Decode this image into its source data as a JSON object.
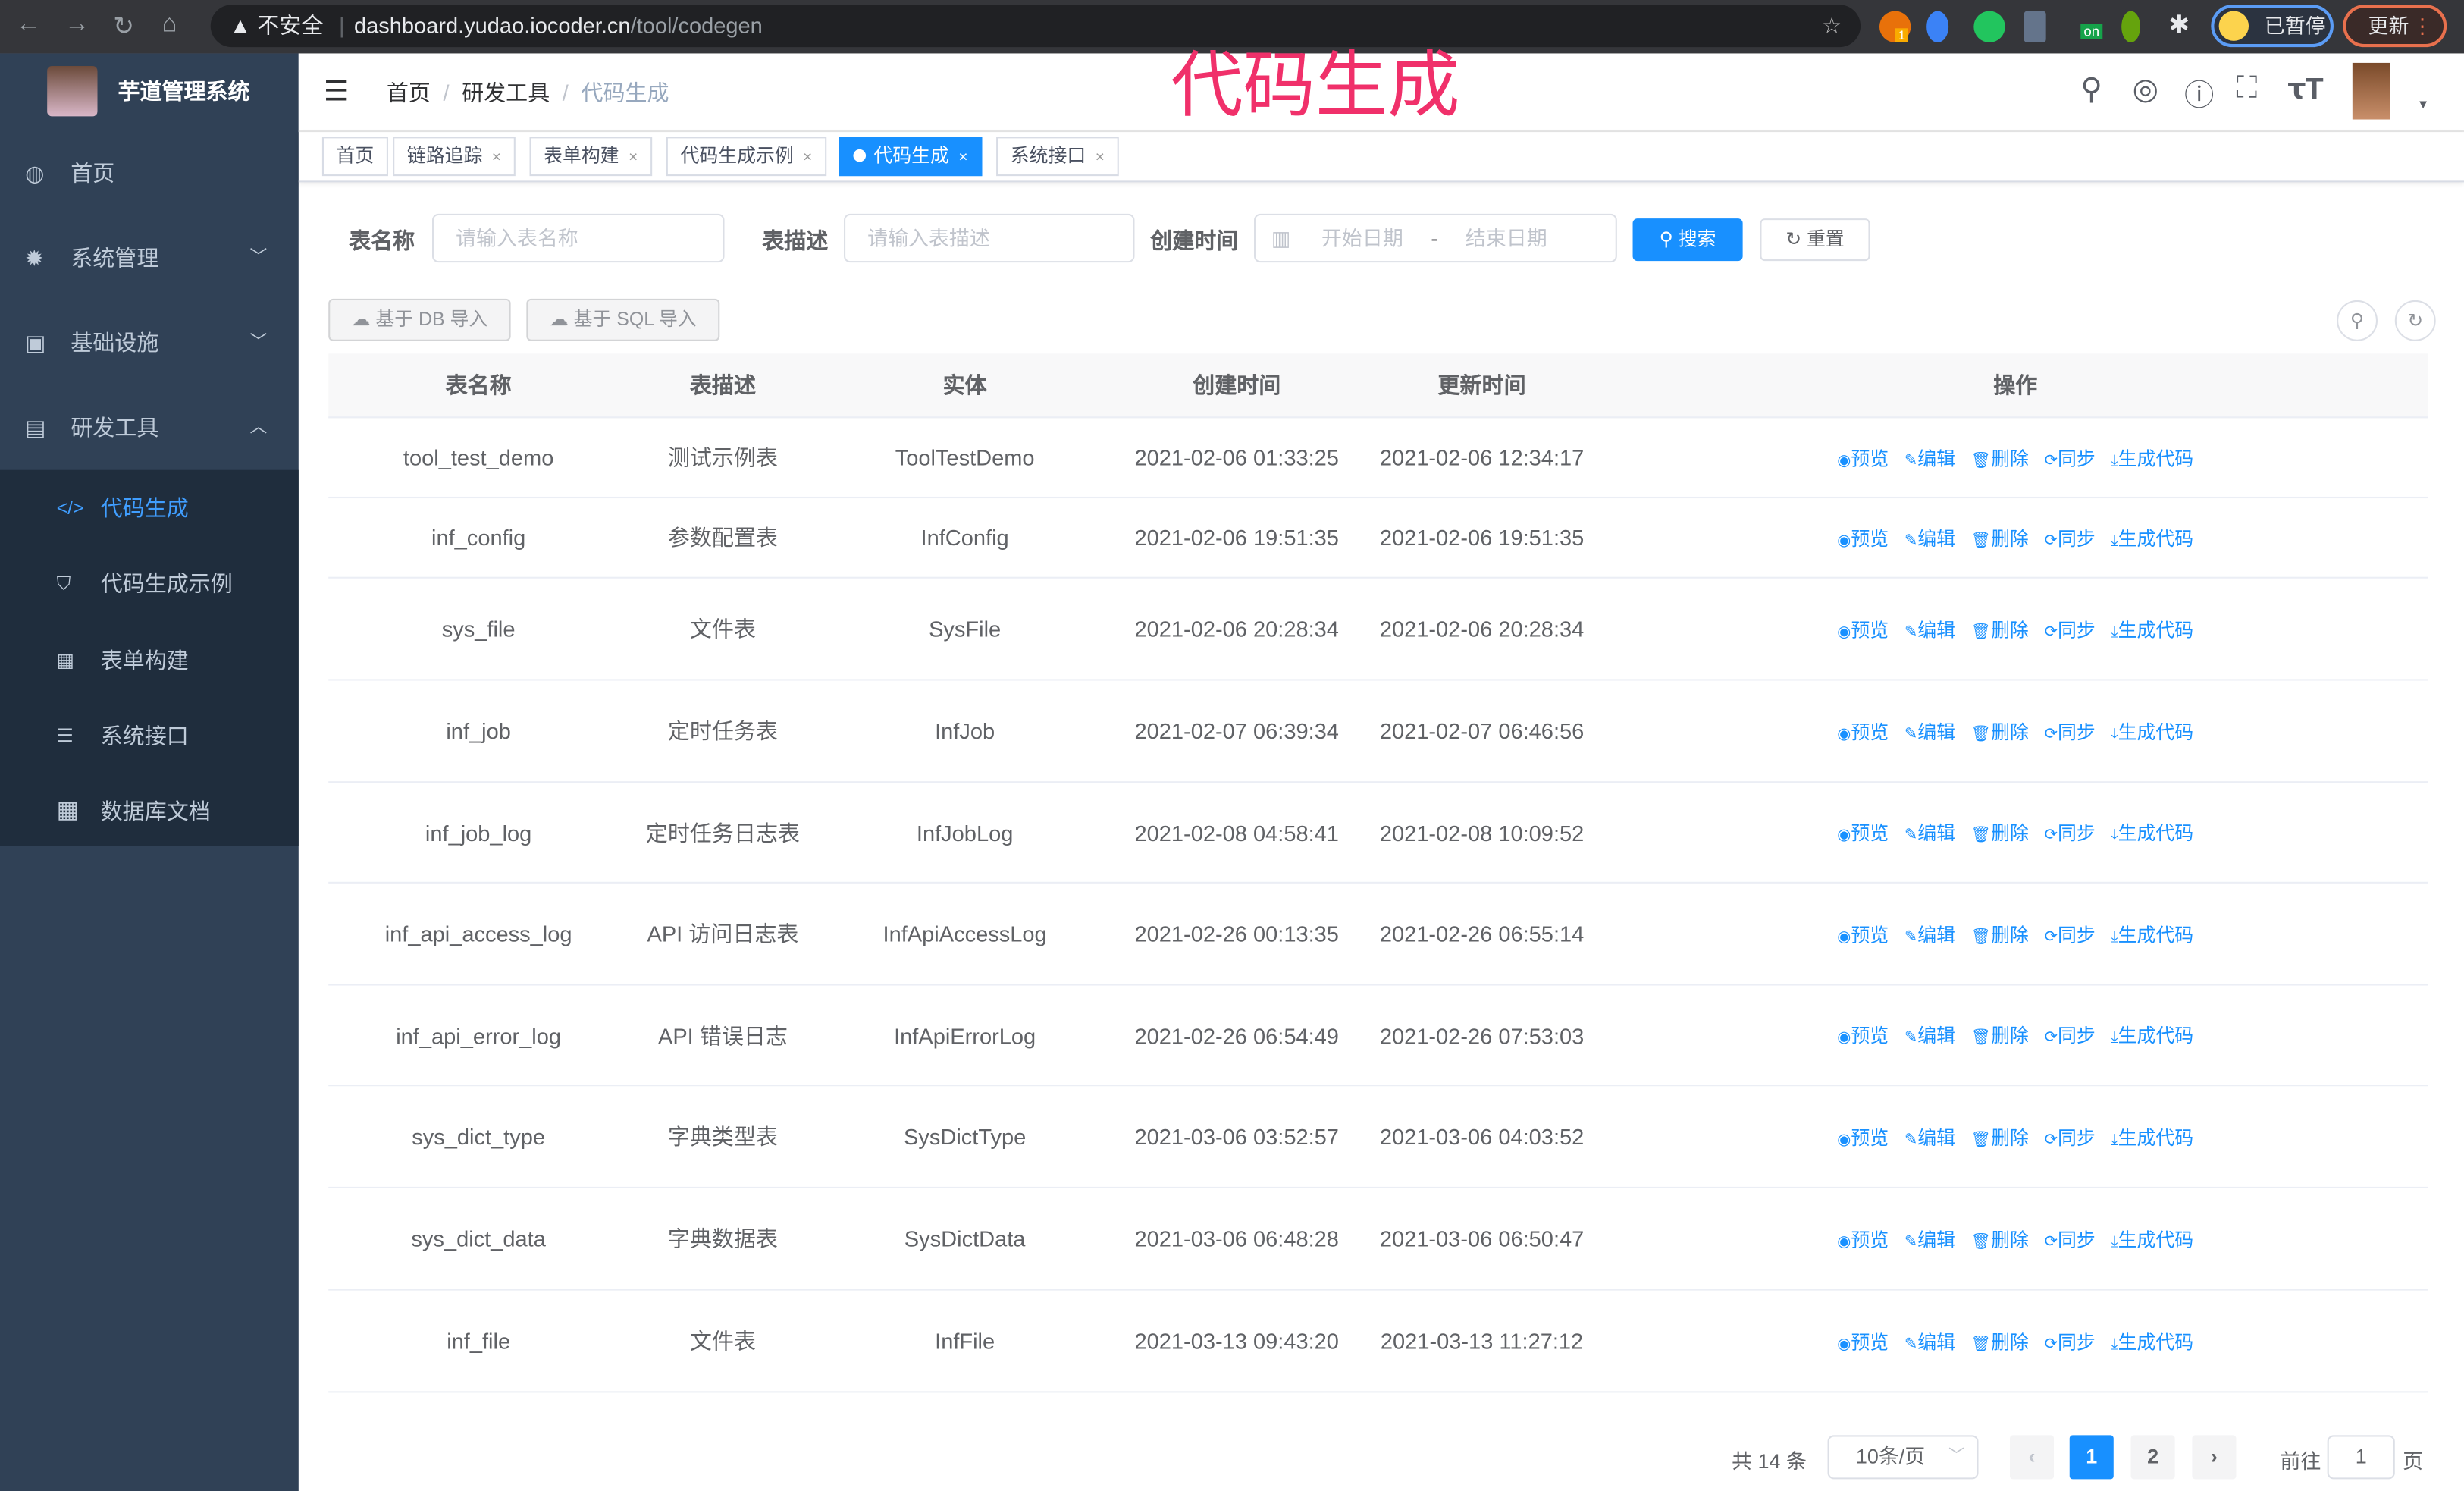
{
  "browser": {
    "security": "不安全",
    "url_host": "dashboard.yudao.iocoder.cn",
    "url_path": "/tool/codegen",
    "paused_label": "已暂停",
    "update_label": "更新",
    "ext_badge": "1",
    "ext_on": "on"
  },
  "sidebar": {
    "brand": "芋道管理系统",
    "items": [
      {
        "label": "首页",
        "icon": "dashboard-icon"
      },
      {
        "label": "系统管理",
        "icon": "gear-icon",
        "chevron": "down"
      },
      {
        "label": "基础设施",
        "icon": "monitor-icon",
        "chevron": "down"
      },
      {
        "label": "研发工具",
        "icon": "toolbox-icon",
        "chevron": "up"
      }
    ],
    "subitems": [
      {
        "label": "代码生成",
        "icon": "code-icon",
        "active": true
      },
      {
        "label": "代码生成示例",
        "icon": "shield-icon"
      },
      {
        "label": "表单构建",
        "icon": "form-icon"
      },
      {
        "label": "系统接口",
        "icon": "sliders-icon"
      },
      {
        "label": "数据库文档",
        "icon": "table-icon"
      }
    ]
  },
  "header": {
    "breadcrumb": [
      "首页",
      "研发工具",
      "代码生成"
    ],
    "watermark": "代码生成"
  },
  "tags": [
    {
      "label": "首页"
    },
    {
      "label": "链路追踪"
    },
    {
      "label": "表单构建"
    },
    {
      "label": "代码生成示例"
    },
    {
      "label": "代码生成",
      "active": true
    },
    {
      "label": "系统接口"
    }
  ],
  "filters": {
    "table_name_label": "表名称",
    "table_name_placeholder": "请输入表名称",
    "table_desc_label": "表描述",
    "table_desc_placeholder": "请输入表描述",
    "created_label": "创建时间",
    "start_placeholder": "开始日期",
    "range_sep": "-",
    "end_placeholder": "结束日期",
    "search_label": "搜索",
    "reset_label": "重置"
  },
  "toolbar": {
    "import_db": "基于 DB 导入",
    "import_sql": "基于 SQL 导入"
  },
  "table": {
    "columns": [
      "表名称",
      "表描述",
      "实体",
      "创建时间",
      "更新时间",
      "操作"
    ],
    "actions": [
      "预览",
      "编辑",
      "删除",
      "同步",
      "生成代码"
    ],
    "rows": [
      [
        "tool_test_demo",
        "测试示例表",
        "ToolTestDemo",
        "2021-02-06 01:33:25",
        "2021-02-06 12:34:17"
      ],
      [
        "inf_config",
        "参数配置表",
        "InfConfig",
        "2021-02-06 19:51:35",
        "2021-02-06 19:51:35"
      ],
      [
        "sys_file",
        "文件表",
        "SysFile",
        "2021-02-06 20:28:34",
        "2021-02-06 20:28:34"
      ],
      [
        "inf_job",
        "定时任务表",
        "InfJob",
        "2021-02-07 06:39:34",
        "2021-02-07 06:46:56"
      ],
      [
        "inf_job_log",
        "定时任务日志表",
        "InfJobLog",
        "2021-02-08 04:58:41",
        "2021-02-08 10:09:52"
      ],
      [
        "inf_api_access_log",
        "API 访问日志表",
        "InfApiAccessLog",
        "2021-02-26 00:13:35",
        "2021-02-26 06:55:14"
      ],
      [
        "inf_api_error_log",
        "API 错误日志",
        "InfApiErrorLog",
        "2021-02-26 06:54:49",
        "2021-02-26 07:53:03"
      ],
      [
        "sys_dict_type",
        "字典类型表",
        "SysDictType",
        "2021-03-06 03:52:57",
        "2021-03-06 04:03:52"
      ],
      [
        "sys_dict_data",
        "字典数据表",
        "SysDictData",
        "2021-03-06 06:48:28",
        "2021-03-06 06:50:47"
      ],
      [
        "inf_file",
        "文件表",
        "InfFile",
        "2021-03-13 09:43:20",
        "2021-03-13 11:27:12"
      ]
    ]
  },
  "pagination": {
    "total": "共 14 条",
    "page_size": "10条/页",
    "pages": [
      "1",
      "2"
    ],
    "current": "1",
    "goto_label": "前往",
    "goto_value": "1",
    "page_suffix": "页"
  },
  "colors": {
    "sidebar": "#304156",
    "submenu": "#1f2d3d",
    "primary": "#1890ff",
    "watermark": "#f0306a"
  }
}
